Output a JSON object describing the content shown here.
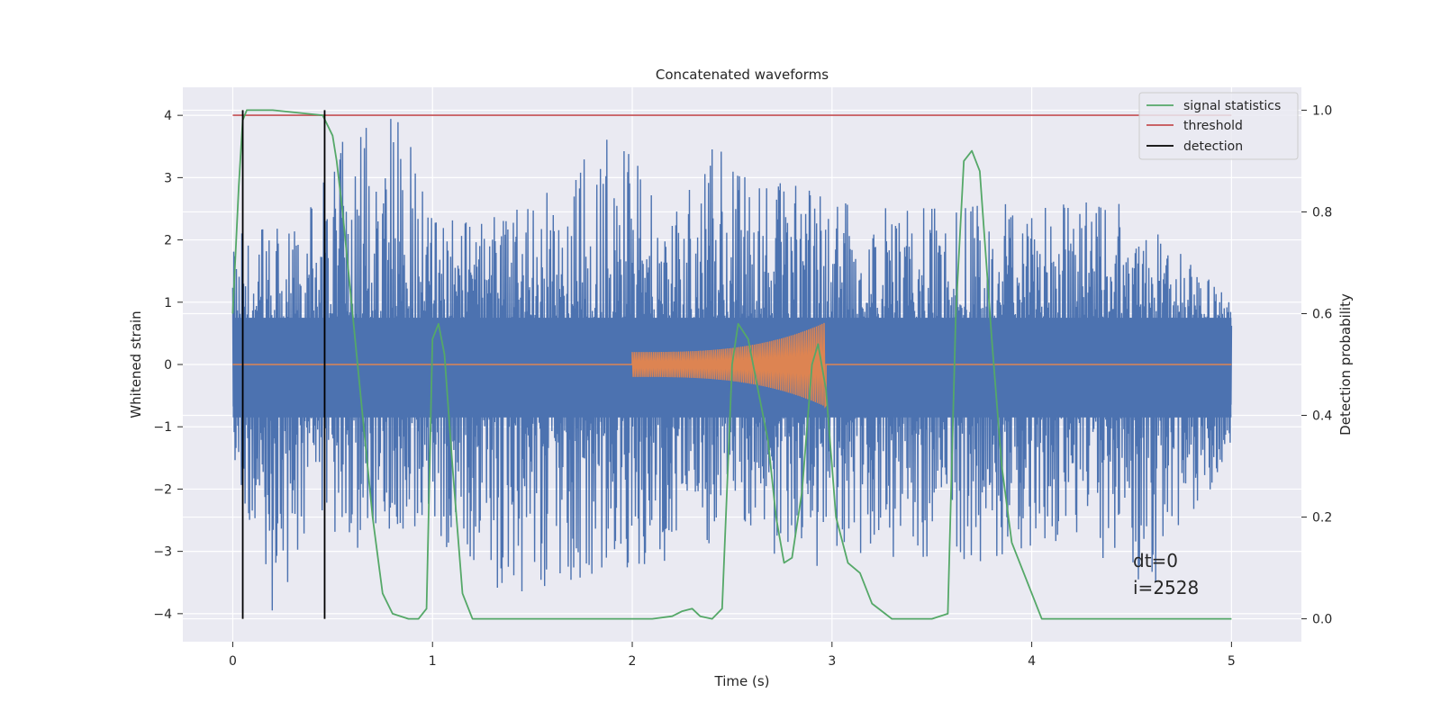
{
  "chart_data": {
    "type": "line",
    "title": "Concatenated waveforms",
    "xlabel": "Time (s)",
    "ylabel_left": "Whitened strain",
    "ylabel_right": "Detection probability",
    "xlim": [
      -0.25,
      5.35
    ],
    "ylim_left": [
      -4.45,
      4.45
    ],
    "ylim_right": [
      -0.045,
      1.045
    ],
    "grid": true,
    "legend_position": "top-right",
    "x_ticks": [
      0,
      1,
      2,
      3,
      4,
      5
    ],
    "y_left_ticks": [
      -4,
      -3,
      -2,
      -1,
      0,
      1,
      2,
      3,
      4
    ],
    "y_right_ticks": [
      0.0,
      0.2,
      0.4,
      0.6,
      0.8,
      1.0
    ],
    "x_tick_labels": [
      "0",
      "1",
      "2",
      "3",
      "4",
      "5"
    ],
    "y_left_tick_labels": [
      "−4",
      "−3",
      "−2",
      "−1",
      "0",
      "1",
      "2",
      "3",
      "4"
    ],
    "y_right_tick_labels": [
      "0.0",
      "0.2",
      "0.4",
      "0.6",
      "0.8",
      "1.0"
    ],
    "series": [
      {
        "name": "",
        "axis": "left",
        "kind": "noise",
        "color": "#4c72b0",
        "x_range": [
          0,
          5
        ],
        "envelope_max": [
          [
            0,
            2.3
          ],
          [
            0.04,
            2.1
          ],
          [
            0.2,
            2.2
          ],
          [
            0.35,
            2.3
          ],
          [
            0.5,
            3.6
          ],
          [
            0.84,
            4.0
          ],
          [
            1.0,
            2.4
          ],
          [
            1.5,
            2.5
          ],
          [
            1.9,
            3.9
          ],
          [
            2.2,
            2.5
          ],
          [
            2.4,
            3.6
          ],
          [
            3.0,
            2.6
          ],
          [
            3.5,
            2.5
          ],
          [
            4.0,
            2.6
          ],
          [
            4.5,
            2.6
          ],
          [
            5.0,
            1.0
          ]
        ],
        "envelope_min": [
          [
            0,
            -1.5
          ],
          [
            0.21,
            -4.1
          ],
          [
            0.4,
            -2.6
          ],
          [
            0.6,
            -3.0
          ],
          [
            0.9,
            -2.6
          ],
          [
            1.37,
            -3.7
          ],
          [
            1.9,
            -3.3
          ],
          [
            2.6,
            -2.9
          ],
          [
            3.0,
            -3.4
          ],
          [
            3.7,
            -3.2
          ],
          [
            4.1,
            -2.8
          ],
          [
            4.6,
            -3.6
          ],
          [
            5.0,
            -1.5
          ]
        ]
      },
      {
        "name": "",
        "axis": "left",
        "kind": "chirp",
        "color": "#dd8452",
        "x_range": [
          0,
          5
        ],
        "burst_start": 2.0,
        "burst_end": 2.97,
        "amplitude_start": 0.2,
        "amplitude_peak": 0.68,
        "amplitude_trough": -0.65
      },
      {
        "name": "signal statistics",
        "axis": "right",
        "color": "#55a868",
        "x": [
          0,
          0.03,
          0.05,
          0.07,
          0.1,
          0.2,
          0.45,
          0.5,
          0.52,
          0.55,
          0.6,
          0.7,
          0.75,
          0.8,
          0.88,
          0.93,
          0.97,
          1.0,
          1.03,
          1.06,
          1.1,
          1.15,
          1.2,
          1.3,
          2.0,
          2.1,
          2.2,
          2.25,
          2.3,
          2.34,
          2.4,
          2.45,
          2.5,
          2.53,
          2.58,
          2.63,
          2.68,
          2.72,
          2.76,
          2.8,
          2.85,
          2.9,
          2.93,
          2.97,
          3.02,
          3.08,
          3.14,
          3.2,
          3.3,
          3.5,
          3.58,
          3.62,
          3.66,
          3.7,
          3.74,
          3.8,
          3.85,
          3.9,
          4.0,
          4.05,
          4.2,
          5.0
        ],
        "y": [
          0.6,
          0.85,
          0.98,
          1.0,
          1.0,
          1.0,
          0.99,
          0.95,
          0.9,
          0.8,
          0.6,
          0.2,
          0.05,
          0.01,
          0.0,
          0.0,
          0.02,
          0.55,
          0.58,
          0.52,
          0.3,
          0.05,
          0.0,
          0.0,
          0.0,
          0.0,
          0.005,
          0.015,
          0.02,
          0.005,
          0.0,
          0.02,
          0.5,
          0.58,
          0.55,
          0.45,
          0.35,
          0.2,
          0.11,
          0.12,
          0.25,
          0.5,
          0.54,
          0.45,
          0.2,
          0.11,
          0.09,
          0.03,
          0.0,
          0.0,
          0.01,
          0.6,
          0.9,
          0.92,
          0.88,
          0.55,
          0.3,
          0.15,
          0.05,
          0.0,
          0.0,
          0.0
        ]
      },
      {
        "name": "threshold",
        "axis": "right",
        "color": "#c44e52",
        "x": [
          0,
          5
        ],
        "y": [
          0.99,
          0.99
        ]
      },
      {
        "name": "detection",
        "axis": "right",
        "color": "#000000",
        "vlines": [
          0.05,
          0.46
        ],
        "ymin": 0.0,
        "ymax": 1.0
      }
    ],
    "annotations": [
      "dt=0",
      "i=2528"
    ]
  }
}
